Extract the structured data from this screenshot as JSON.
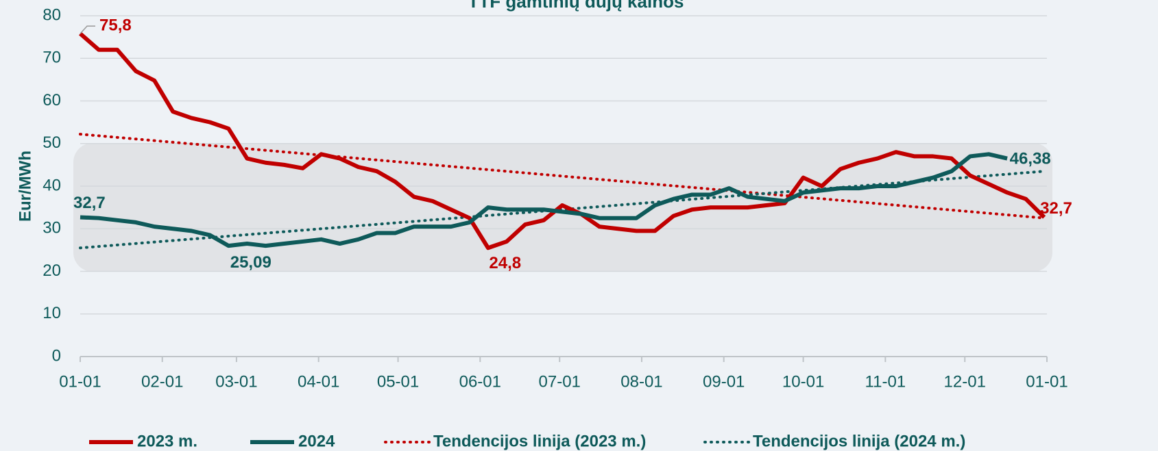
{
  "chart_data": {
    "type": "line",
    "title": "TTF gamtinių dujų kainos",
    "ylabel": "Eur/MWh",
    "x": [
      0,
      7,
      14,
      21,
      28,
      35,
      42,
      49,
      56,
      63,
      70,
      77,
      84,
      91,
      98,
      105,
      112,
      119,
      126,
      133,
      140,
      147,
      154,
      161,
      168,
      175,
      182,
      189,
      196,
      203,
      210,
      217,
      224,
      231,
      238,
      245,
      252,
      259,
      266,
      273,
      280,
      287,
      294,
      301,
      308,
      315,
      322,
      329,
      336,
      343,
      350,
      357,
      364
    ],
    "xlim": [
      0,
      365
    ],
    "xticks": [
      {
        "value": 0,
        "label": "01-01"
      },
      {
        "value": 31,
        "label": "02-01"
      },
      {
        "value": 59,
        "label": "03-01"
      },
      {
        "value": 90,
        "label": "04-01"
      },
      {
        "value": 120,
        "label": "05-01"
      },
      {
        "value": 151,
        "label": "06-01"
      },
      {
        "value": 181,
        "label": "07-01"
      },
      {
        "value": 212,
        "label": "08-01"
      },
      {
        "value": 243,
        "label": "09-01"
      },
      {
        "value": 273,
        "label": "10-01"
      },
      {
        "value": 304,
        "label": "11-01"
      },
      {
        "value": 334,
        "label": "12-01"
      },
      {
        "value": 365,
        "label": "01-01"
      }
    ],
    "ylim": [
      0,
      80
    ],
    "yticks": [
      0,
      10,
      20,
      30,
      40,
      50,
      60,
      70,
      80
    ],
    "grid": true,
    "series": [
      {
        "name": "2023 m.",
        "color": "#c00000",
        "values": [
          75.8,
          72,
          72,
          67,
          64.8,
          57.5,
          56,
          55,
          53.5,
          46.5,
          45.5,
          45,
          44.2,
          47.5,
          46.5,
          44.5,
          43.5,
          41,
          37.5,
          36.5,
          34.5,
          32.5,
          25.5,
          27,
          31,
          32,
          35.5,
          33.5,
          30.5,
          30,
          29.5,
          29.5,
          33,
          34.5,
          35,
          35,
          35,
          35.5,
          36,
          42,
          40,
          44,
          45.5,
          46.5,
          48,
          47,
          47,
          46.5,
          42.5,
          40.5,
          38.5,
          37,
          32.7
        ]
      },
      {
        "name": "2024",
        "color": "#0e5a5a",
        "values": [
          32.7,
          32.5,
          32,
          31.5,
          30.5,
          30,
          29.5,
          28.5,
          26,
          26.5,
          26,
          26.5,
          27,
          27.5,
          26.5,
          27.5,
          29,
          29,
          30.5,
          30.5,
          30.5,
          31.5,
          35,
          34.5,
          34.5,
          34.5,
          34,
          33.5,
          32.5,
          32.5,
          32.5,
          35.5,
          37,
          38,
          38,
          39.5,
          37.5,
          37,
          36.5,
          38.5,
          39,
          39.5,
          39.5,
          40,
          40,
          41,
          42,
          43.5,
          47,
          47.5,
          46.5,
          null,
          null
        ]
      }
    ],
    "trendlines": {
      "x": [
        0,
        364
      ],
      "series": [
        {
          "name": "Tendencijos linija (2023 m.)",
          "color": "#c00000",
          "values": [
            52.2,
            32.5
          ]
        },
        {
          "name": "Tendencijos linija (2024 m.)",
          "color": "#0e5a5a",
          "values": [
            25.5,
            43.5
          ]
        }
      ]
    },
    "annotations": [
      {
        "label": "75,8",
        "value": 75.8,
        "x": 0,
        "series": 0
      },
      {
        "label": "32,7",
        "value": 32.7,
        "x": 0,
        "series": 1
      },
      {
        "label": "25,09",
        "value": 25.09,
        "x": 60,
        "series": 1
      },
      {
        "label": "24,8",
        "value": 24.8,
        "x": 155,
        "series": 0
      },
      {
        "label": "32,7",
        "value": 32.7,
        "x": 364,
        "series": 0
      },
      {
        "label": "46,38",
        "value": 46.38,
        "x": 353,
        "series": 1
      }
    ]
  }
}
